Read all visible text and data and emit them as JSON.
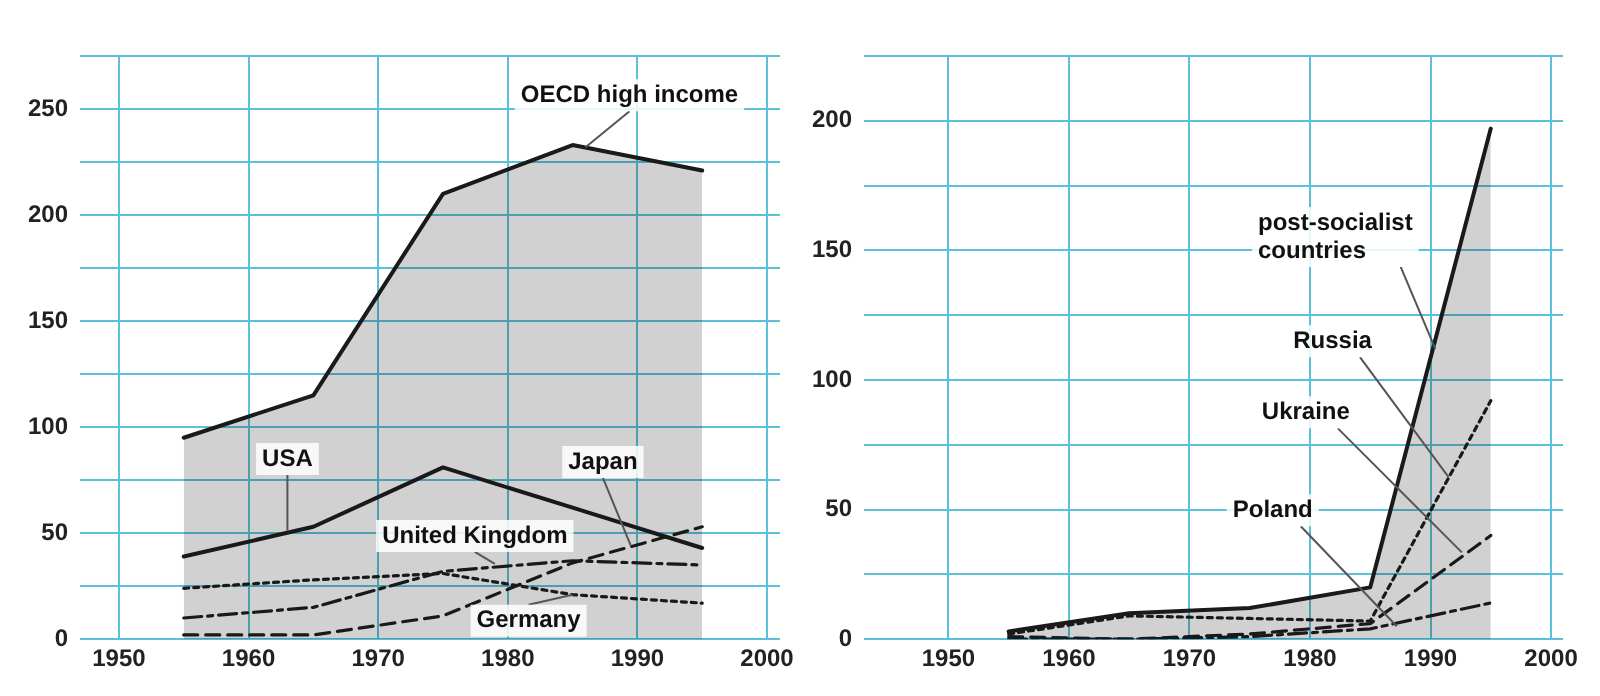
{
  "chart_data": [
    {
      "type": "line",
      "x": [
        1955,
        1965,
        1975,
        1985,
        1995
      ],
      "xlim": [
        1947,
        2001
      ],
      "xticks": [
        1950,
        1960,
        1970,
        1980,
        1990,
        2000
      ],
      "ylim": [
        0,
        275
      ],
      "yticks": [
        0,
        {
          "value": 25,
          "label": null
        },
        50,
        {
          "value": 75,
          "label": null
        },
        100,
        {
          "value": 125,
          "label": null
        },
        150,
        {
          "value": 175,
          "label": null
        },
        200,
        {
          "value": 225,
          "label": null
        },
        250,
        {
          "value": 275,
          "label": null
        }
      ],
      "grid": true,
      "legend": false,
      "series": [
        {
          "type": "area",
          "color": "#1a1a1a",
          "line_style": "solid",
          "values": [
            95,
            115,
            210,
            233,
            221
          ]
        },
        {
          "color": "#1a1a1a",
          "line_style": "solid",
          "values": [
            39,
            53,
            81,
            62,
            43
          ]
        },
        {
          "color": "#1a1a1a",
          "line_style": "dashdot",
          "values": [
            10,
            15,
            32,
            37,
            35
          ]
        },
        {
          "color": "#1a1a1a",
          "line_style": "dotted",
          "values": [
            24,
            28,
            31,
            21,
            17
          ]
        },
        {
          "color": "#1a1a1a",
          "line_style": "dashed",
          "values": [
            2,
            2,
            11,
            36,
            53
          ]
        }
      ],
      "annotations": [
        {
          "text": "OECD high income",
          "x": 1986,
          "y": 232
        },
        {
          "text": "USA",
          "x": 1963,
          "y": 51
        },
        {
          "text": "Japan",
          "x": 1989.5,
          "y": 44
        },
        {
          "text": "United Kingdom",
          "x": 1979,
          "y": 35.5
        },
        {
          "text": "Germany",
          "x": 1985,
          "y": 21
        }
      ]
    },
    {
      "type": "line",
      "x": [
        1955,
        1965,
        1975,
        1985,
        1995
      ],
      "xlim": [
        1943,
        2001
      ],
      "xticks": [
        1950,
        1960,
        1970,
        1980,
        1990,
        2000
      ],
      "ylim": [
        0,
        225
      ],
      "yticks": [
        0,
        {
          "value": 25,
          "label": null
        },
        50,
        {
          "value": 75,
          "label": null
        },
        100,
        {
          "value": 125,
          "label": null
        },
        150,
        {
          "value": 175,
          "label": null
        },
        200,
        {
          "value": 225,
          "label": null
        }
      ],
      "grid": true,
      "legend": false,
      "series": [
        {
          "type": "area",
          "color": "#1a1a1a",
          "line_style": "solid",
          "values": [
            3,
            10,
            12,
            20,
            197
          ]
        },
        {
          "color": "#1a1a1a",
          "line_style": "dotted",
          "values": [
            2,
            9,
            8,
            7,
            92
          ]
        },
        {
          "color": "#1a1a1a",
          "line_style": "dashed",
          "values": [
            1,
            0,
            2,
            6,
            40
          ]
        },
        {
          "color": "#1a1a1a",
          "line_style": "dashdot",
          "values": [
            0,
            0,
            1,
            4,
            14
          ]
        }
      ],
      "annotations": [
        {
          "text": "post-socialist countries",
          "x": 1990.4,
          "y": 112
        },
        {
          "text": "Russia",
          "x": 1991.5,
          "y": 62.5
        },
        {
          "text": "Ukraine",
          "x": 1992.6,
          "y": 33.5
        },
        {
          "text": "Poland",
          "x": 1987.2,
          "y": 5
        }
      ]
    }
  ]
}
